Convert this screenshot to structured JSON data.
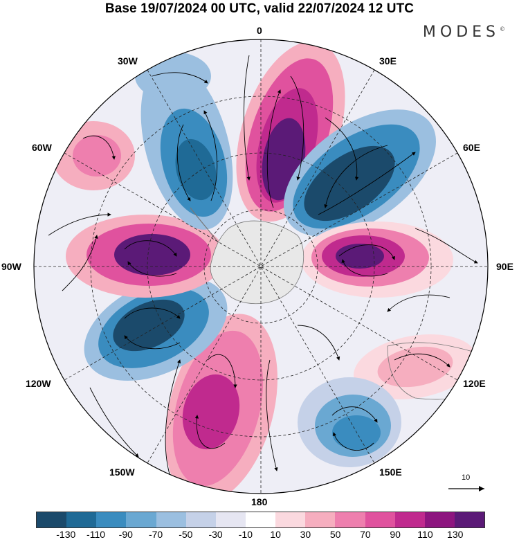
{
  "title": "Base 19/07/2024 00 UTC, valid 22/07/2024 12 UTC",
  "brand": "MODES",
  "brand_mark": "©",
  "longitude_labels": {
    "lon_0": "0",
    "lon_30e": "30E",
    "lon_60e": "60E",
    "lon_90e": "90E",
    "lon_120e": "120E",
    "lon_150e": "150E",
    "lon_180": "180",
    "lon_150w": "150W",
    "lon_120w": "120W",
    "lon_90w": "90W",
    "lon_60w": "60W",
    "lon_30w": "30W"
  },
  "vector_scale_label": "10",
  "colorbar": {
    "colors": [
      "#1b4a6b",
      "#1f6a96",
      "#3a8cbf",
      "#6aa8d2",
      "#9bbfe0",
      "#c5d1e8",
      "#e6e6f2",
      "#ffffff",
      "#fbd9df",
      "#f6aebf",
      "#ee7fae",
      "#e0529e",
      "#c02a8e",
      "#8d157f",
      "#5b1a77"
    ],
    "tick_labels": [
      "-130",
      "-110",
      "-90",
      "-70",
      "-50",
      "-30",
      "-10",
      "10",
      "30",
      "50",
      "70",
      "90",
      "110",
      "130"
    ]
  },
  "icons": {
    "map": "polar-stereographic-map",
    "arrow": "vector-scale-arrow"
  }
}
